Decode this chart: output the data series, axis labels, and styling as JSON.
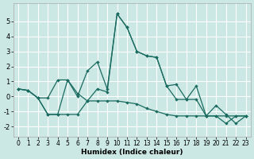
{
  "xlabel": "Humidex (Indice chaleur)",
  "bg_color": "#cce8e4",
  "grid_color": "#ffffff",
  "line_color": "#1a6b60",
  "xlim": [
    -0.5,
    23.5
  ],
  "ylim": [
    -2.7,
    6.2
  ],
  "xticks": [
    0,
    1,
    2,
    3,
    4,
    5,
    6,
    7,
    8,
    9,
    10,
    11,
    12,
    13,
    14,
    15,
    16,
    17,
    18,
    19,
    20,
    21,
    22,
    23
  ],
  "yticks": [
    -2,
    -1,
    0,
    1,
    2,
    3,
    4,
    5
  ],
  "series": [
    [
      0.5,
      0.4,
      -0.1,
      -0.1,
      1.1,
      1.1,
      0.2,
      -0.3,
      0.5,
      0.3,
      5.5,
      4.6,
      3.0,
      2.7,
      2.6,
      0.7,
      -0.2,
      -0.2,
      0.7,
      -1.3,
      -1.3,
      -1.8,
      -1.3,
      -1.3
    ],
    [
      0.5,
      0.4,
      -0.1,
      -1.2,
      -1.2,
      1.1,
      0.0,
      1.7,
      2.3,
      0.5,
      5.5,
      4.6,
      3.0,
      2.7,
      2.6,
      0.7,
      0.8,
      -0.2,
      -0.2,
      -1.3,
      -0.6,
      -1.2,
      -1.8,
      -1.3
    ],
    [
      0.5,
      0.4,
      -0.1,
      -1.2,
      -1.2,
      -1.2,
      -1.2,
      -0.3,
      -0.3,
      -0.3,
      -0.3,
      -0.4,
      -0.5,
      -0.8,
      -1.0,
      -1.2,
      -1.3,
      -1.3,
      -1.3,
      -1.3,
      -1.3,
      -1.3,
      -1.3,
      -1.3
    ]
  ],
  "xlabel_fontsize": 6.5,
  "xlabel_fontweight": "bold",
  "tick_fontsize": 5.5,
  "ytick_fontsize": 6.0
}
